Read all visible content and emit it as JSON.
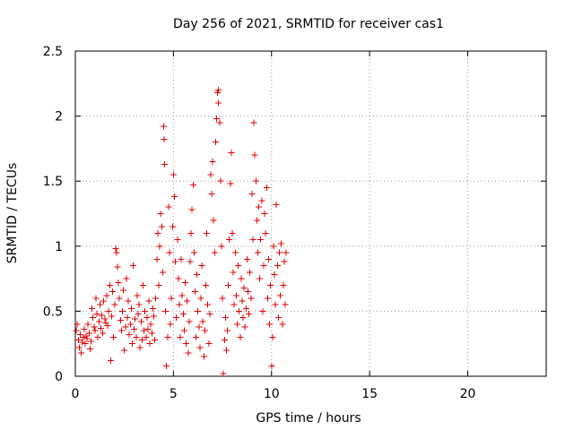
{
  "chart_data": {
    "type": "scatter",
    "title": "Day 256 of 2021, SRMTID for receiver cas1",
    "xlabel": "GPS time / hours",
    "ylabel": "SRMTID / TECUs",
    "xlim": [
      0,
      24
    ],
    "ylim": [
      0,
      2.5
    ],
    "x_ticks": [
      0,
      5,
      10,
      15,
      20
    ],
    "x_tick_labels": [
      "0",
      "5",
      "10",
      "15",
      "20"
    ],
    "y_ticks": [
      0,
      0.5,
      1,
      1.5,
      2,
      2.5
    ],
    "y_tick_labels": [
      "0",
      "0.5",
      "1",
      "1.5",
      "2",
      "2.5"
    ],
    "grid": true,
    "marker": "+",
    "marker_color": "#e00000",
    "series": [
      {
        "name": "SRMTID",
        "points": [
          [
            0.05,
            0.35
          ],
          [
            0.1,
            0.4
          ],
          [
            0.15,
            0.28
          ],
          [
            0.2,
            0.22
          ],
          [
            0.25,
            0.32
          ],
          [
            0.3,
            0.18
          ],
          [
            0.35,
            0.26
          ],
          [
            0.4,
            0.3
          ],
          [
            0.45,
            0.36
          ],
          [
            0.5,
            0.25
          ],
          [
            0.55,
            0.31
          ],
          [
            0.6,
            0.29
          ],
          [
            0.65,
            0.4
          ],
          [
            0.7,
            0.33
          ],
          [
            0.75,
            0.21
          ],
          [
            0.8,
            0.27
          ],
          [
            0.85,
            0.52
          ],
          [
            0.9,
            0.45
          ],
          [
            0.95,
            0.38
          ],
          [
            1.0,
            0.35
          ],
          [
            1.05,
            0.6
          ],
          [
            1.1,
            0.48
          ],
          [
            1.15,
            0.3
          ],
          [
            1.2,
            0.42
          ],
          [
            1.25,
            0.55
          ],
          [
            1.3,
            0.37
          ],
          [
            1.35,
            0.47
          ],
          [
            1.4,
            0.33
          ],
          [
            1.45,
            0.58
          ],
          [
            1.5,
            0.44
          ],
          [
            1.55,
            0.41
          ],
          [
            1.6,
            0.62
          ],
          [
            1.65,
            0.39
          ],
          [
            1.7,
            0.5
          ],
          [
            1.75,
            0.7
          ],
          [
            1.8,
            0.12
          ],
          [
            1.85,
            0.46
          ],
          [
            1.9,
            0.65
          ],
          [
            1.95,
            0.3
          ],
          [
            2.0,
            0.55
          ],
          [
            2.05,
            0.98
          ],
          [
            2.1,
            0.95
          ],
          [
            2.15,
            0.84
          ],
          [
            2.2,
            0.72
          ],
          [
            2.25,
            0.6
          ],
          [
            2.3,
            0.43
          ],
          [
            2.35,
            0.35
          ],
          [
            2.4,
            0.5
          ],
          [
            2.45,
            0.66
          ],
          [
            2.5,
            0.2
          ],
          [
            2.55,
            0.38
          ],
          [
            2.6,
            0.75
          ],
          [
            2.65,
            0.45
          ],
          [
            2.7,
            0.58
          ],
          [
            2.75,
            0.32
          ],
          [
            2.8,
            0.4
          ],
          [
            2.85,
            0.52
          ],
          [
            2.9,
            0.25
          ],
          [
            2.95,
            0.85
          ],
          [
            3.0,
            0.36
          ],
          [
            3.05,
            0.44
          ],
          [
            3.1,
            0.3
          ],
          [
            3.15,
            0.62
          ],
          [
            3.2,
            0.48
          ],
          [
            3.25,
            0.55
          ],
          [
            3.3,
            0.22
          ],
          [
            3.35,
            0.42
          ],
          [
            3.4,
            0.28
          ],
          [
            3.45,
            0.7
          ],
          [
            3.5,
            0.35
          ],
          [
            3.55,
            0.5
          ],
          [
            3.6,
            0.3
          ],
          [
            3.65,
            0.45
          ],
          [
            3.7,
            0.36
          ],
          [
            3.75,
            0.58
          ],
          [
            3.8,
            0.25
          ],
          [
            3.85,
            0.4
          ],
          [
            3.9,
            0.33
          ],
          [
            3.95,
            0.52
          ],
          [
            4.0,
            0.46
          ],
          [
            4.05,
            0.28
          ],
          [
            4.1,
            0.6
          ],
          [
            4.15,
            0.9
          ],
          [
            4.2,
            1.1
          ],
          [
            4.25,
            0.7
          ],
          [
            4.3,
            1.0
          ],
          [
            4.35,
            1.25
          ],
          [
            4.4,
            1.15
          ],
          [
            4.45,
            0.8
          ],
          [
            4.5,
            1.92
          ],
          [
            4.52,
            1.82
          ],
          [
            4.55,
            1.63
          ],
          [
            4.6,
            0.5
          ],
          [
            4.65,
            0.08
          ],
          [
            4.7,
            0.3
          ],
          [
            4.75,
            1.3
          ],
          [
            4.8,
            0.95
          ],
          [
            4.85,
            0.4
          ],
          [
            4.9,
            0.6
          ],
          [
            4.95,
            1.15
          ],
          [
            5.0,
            1.55
          ],
          [
            5.05,
            1.38
          ],
          [
            5.1,
            0.88
          ],
          [
            5.15,
            0.45
          ],
          [
            5.2,
            1.05
          ],
          [
            5.25,
            0.75
          ],
          [
            5.3,
            0.55
          ],
          [
            5.35,
            0.3
          ],
          [
            5.4,
            0.9
          ],
          [
            5.45,
            0.62
          ],
          [
            5.5,
            0.48
          ],
          [
            5.55,
            0.35
          ],
          [
            5.6,
            0.72
          ],
          [
            5.65,
            0.25
          ],
          [
            5.7,
            0.58
          ],
          [
            5.75,
            0.18
          ],
          [
            5.8,
            0.42
          ],
          [
            5.85,
            0.88
          ],
          [
            5.9,
            1.1
          ],
          [
            5.95,
            1.28
          ],
          [
            6.0,
            1.47
          ],
          [
            6.05,
            0.95
          ],
          [
            6.1,
            0.65
          ],
          [
            6.15,
            0.3
          ],
          [
            6.2,
            0.78
          ],
          [
            6.25,
            0.5
          ],
          [
            6.3,
            0.38
          ],
          [
            6.35,
            0.22
          ],
          [
            6.4,
            0.6
          ],
          [
            6.45,
            0.85
          ],
          [
            6.5,
            0.42
          ],
          [
            6.55,
            0.15
          ],
          [
            6.6,
            0.35
          ],
          [
            6.65,
            0.7
          ],
          [
            6.7,
            1.1
          ],
          [
            6.75,
            0.55
          ],
          [
            6.8,
            0.25
          ],
          [
            6.85,
            0.48
          ],
          [
            6.9,
            1.55
          ],
          [
            6.95,
            1.4
          ],
          [
            7.0,
            1.65
          ],
          [
            7.05,
            1.2
          ],
          [
            7.1,
            0.95
          ],
          [
            7.15,
            1.8
          ],
          [
            7.2,
            1.98
          ],
          [
            7.25,
            2.18
          ],
          [
            7.28,
            2.2
          ],
          [
            7.3,
            2.1
          ],
          [
            7.35,
            1.95
          ],
          [
            7.4,
            1.5
          ],
          [
            7.45,
            1.0
          ],
          [
            7.5,
            0.6
          ],
          [
            7.55,
            0.02
          ],
          [
            7.6,
            0.28
          ],
          [
            7.65,
            0.45
          ],
          [
            7.7,
            0.2
          ],
          [
            7.75,
            0.35
          ],
          [
            7.8,
            0.7
          ],
          [
            7.85,
            1.05
          ],
          [
            7.9,
            1.48
          ],
          [
            7.95,
            1.72
          ],
          [
            8.0,
            1.1
          ],
          [
            8.05,
            0.8
          ],
          [
            8.1,
            0.55
          ],
          [
            8.15,
            0.95
          ],
          [
            8.2,
            0.62
          ],
          [
            8.25,
            0.4
          ],
          [
            8.3,
            0.85
          ],
          [
            8.35,
            0.5
          ],
          [
            8.4,
            0.3
          ],
          [
            8.45,
            0.75
          ],
          [
            8.5,
            0.58
          ],
          [
            8.55,
            0.45
          ],
          [
            8.6,
            0.68
          ],
          [
            8.65,
            0.38
          ],
          [
            8.7,
            0.52
          ],
          [
            8.75,
            0.9
          ],
          [
            8.8,
            0.65
          ],
          [
            8.85,
            0.48
          ],
          [
            8.9,
            0.8
          ],
          [
            8.95,
            0.6
          ],
          [
            9.0,
            1.4
          ],
          [
            9.05,
            1.05
          ],
          [
            9.1,
            1.95
          ],
          [
            9.15,
            1.7
          ],
          [
            9.2,
            1.5
          ],
          [
            9.25,
            1.2
          ],
          [
            9.3,
            0.95
          ],
          [
            9.35,
            1.3
          ],
          [
            9.4,
            0.75
          ],
          [
            9.45,
            1.05
          ],
          [
            9.5,
            1.35
          ],
          [
            9.55,
            0.5
          ],
          [
            9.6,
            0.85
          ],
          [
            9.65,
            1.25
          ],
          [
            9.7,
            1.1
          ],
          [
            9.75,
            1.45
          ],
          [
            9.8,
            0.6
          ],
          [
            9.85,
            0.9
          ],
          [
            9.9,
            0.4
          ],
          [
            9.95,
            0.7
          ],
          [
            10.0,
            0.08
          ],
          [
            10.05,
            0.3
          ],
          [
            10.1,
            1.0
          ],
          [
            10.15,
            0.78
          ],
          [
            10.2,
            0.55
          ],
          [
            10.25,
            1.32
          ],
          [
            10.3,
            0.85
          ],
          [
            10.35,
            0.45
          ],
          [
            10.4,
            0.95
          ],
          [
            10.45,
            0.62
          ],
          [
            10.5,
            1.02
          ],
          [
            10.55,
            0.4
          ],
          [
            10.6,
            0.7
          ],
          [
            10.65,
            0.88
          ],
          [
            10.7,
            0.55
          ],
          [
            10.75,
            0.95
          ]
        ]
      }
    ]
  }
}
